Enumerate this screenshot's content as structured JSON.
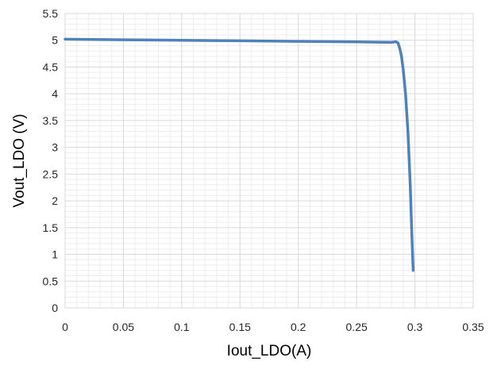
{
  "chart_data": {
    "type": "line",
    "xlabel": "Iout_LDO(A)",
    "ylabel": "Vout_LDO (V)",
    "xlim": [
      0,
      0.35
    ],
    "ylim": [
      0,
      5.5
    ],
    "x_ticks": [
      0,
      0.05,
      0.1,
      0.15,
      0.2,
      0.25,
      0.3,
      0.35
    ],
    "y_ticks": [
      0,
      0.5,
      1,
      1.5,
      2,
      2.5,
      3,
      3.5,
      4,
      4.5,
      5,
      5.5
    ],
    "x_tick_labels": [
      "0",
      "0.05",
      "0.1",
      "0.15",
      "0.2",
      "0.25",
      "0.3",
      "0.35"
    ],
    "y_tick_labels": [
      "0",
      "0.5",
      "1",
      "1.5",
      "2",
      "2.5",
      "3",
      "3.5",
      "4",
      "4.5",
      "5",
      "5.5"
    ],
    "grid": {
      "major": true,
      "minor": true
    },
    "legend": "none",
    "colors": {
      "series": "#4F81BD",
      "major_grid": "#D9D9D9",
      "minor_grid": "#EDEDED",
      "text": "#262626"
    },
    "series": [
      {
        "x": [
          0,
          0.05,
          0.1,
          0.15,
          0.2,
          0.25,
          0.28,
          0.2825,
          0.284,
          0.2855,
          0.287,
          0.2885,
          0.29,
          0.292,
          0.294,
          0.296,
          0.2975,
          0.2985
        ],
        "y": [
          5.02,
          5.01,
          5.0,
          4.99,
          4.98,
          4.97,
          4.96,
          4.97,
          4.97,
          4.95,
          4.85,
          4.7,
          4.45,
          4.0,
          3.3,
          2.3,
          1.3,
          0.7
        ]
      }
    ]
  }
}
